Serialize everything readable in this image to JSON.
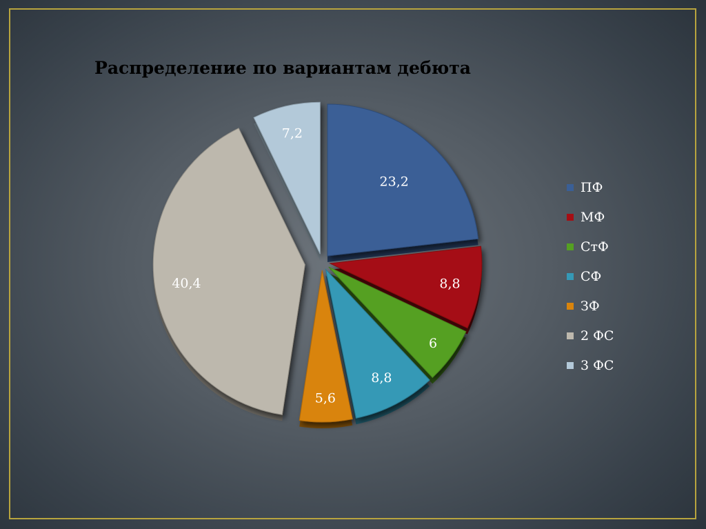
{
  "chart_data": {
    "type": "pie",
    "title": "Распределение по вариантам дебюта",
    "exploded": true,
    "legend_position": "right",
    "slices": [
      {
        "name": "ПФ",
        "value": 23.2,
        "label": "23,2",
        "color": "#3a5f96"
      },
      {
        "name": "МФ",
        "value": 8.8,
        "label": "8,8",
        "color": "#a50e14"
      },
      {
        "name": "СтФ",
        "value": 6,
        "label": "6",
        "color": "#55a022"
      },
      {
        "name": "СФ",
        "value": 8.8,
        "label": "8,8",
        "color": "#3599b6"
      },
      {
        "name": "ЗФ",
        "value": 5.6,
        "label": "5,6",
        "color": "#d9840c"
      },
      {
        "name": "2 ФС",
        "value": 40.4,
        "label": "40,4",
        "color": "#bdb8ad"
      },
      {
        "name": "3 ФС",
        "value": 7.2,
        "label": "7,2",
        "color": "#b3c9d9"
      }
    ]
  },
  "colors": {
    "frame": "#b9a53e",
    "title_text": "#000000",
    "label_text": "#ffffff"
  }
}
